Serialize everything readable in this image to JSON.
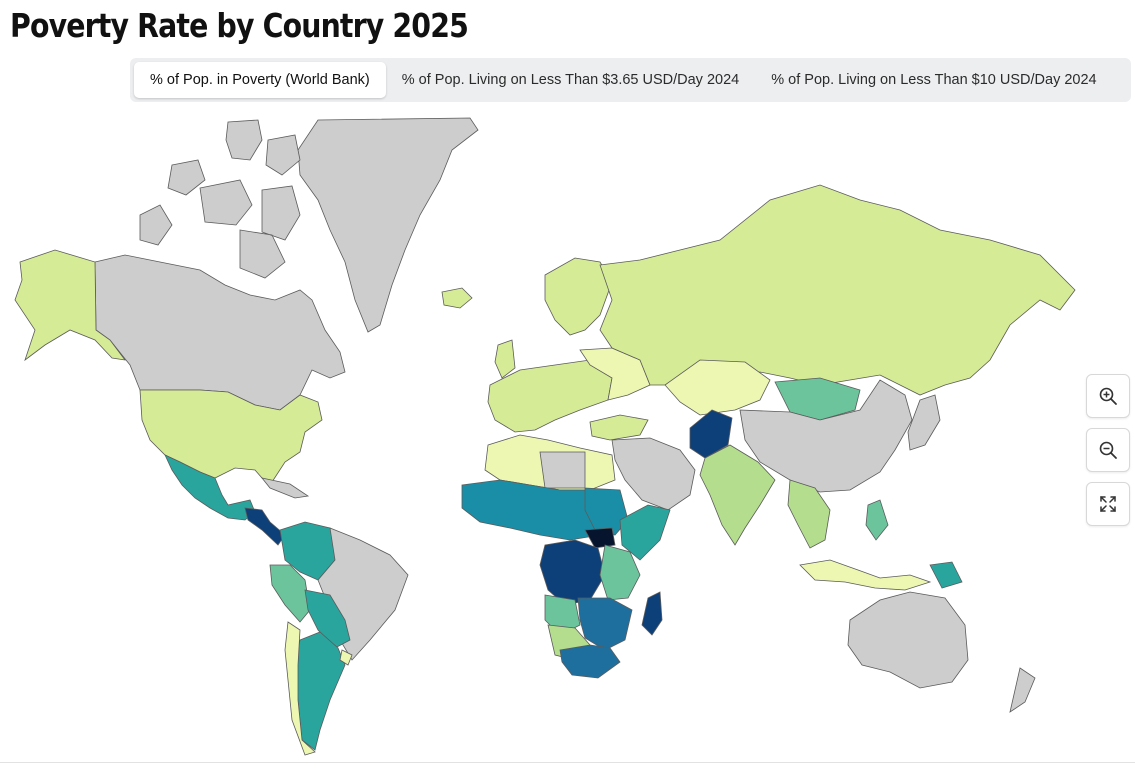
{
  "header": {
    "title": "Poverty Rate by Country 2025"
  },
  "tabs": [
    {
      "label": "% of Pop. in Poverty (World Bank)",
      "active": true
    },
    {
      "label": "% of Pop. Living on Less Than $3.65 USD/Day 2024",
      "active": false
    },
    {
      "label": "% of Pop. Living on Less Than $10 USD/Day 2024",
      "active": false
    }
  ],
  "map": {
    "colors": {
      "no_data": "#cdcdcd",
      "lowest": "#eef7b2",
      "low": "#d6eb96",
      "low_mid": "#b4dd8e",
      "mid": "#6cc49c",
      "mid_high": "#2aa59e",
      "high": "#1a8ea6",
      "very_high": "#1f6f9e",
      "highest": "#0d3f78",
      "extreme": "#06142e"
    }
  },
  "controls": [
    {
      "icon": "zoom-in-icon"
    },
    {
      "icon": "zoom-out-icon"
    },
    {
      "icon": "fullscreen-icon"
    }
  ]
}
